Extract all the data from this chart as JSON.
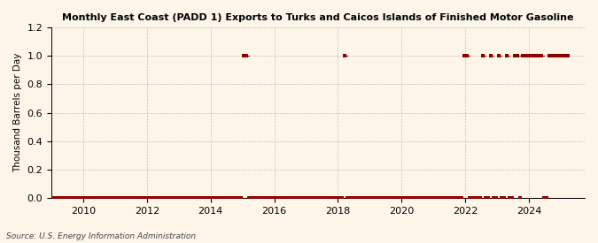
{
  "title": "Monthly East Coast (PADD 1) Exports to Turks and Caicos Islands of Finished Motor Gasoline",
  "ylabel": "Thousand Barrels per Day",
  "source": "Source: U.S. Energy Information Administration",
  "background_color": "#fdf6e8",
  "line_color": "#8b0000",
  "marker_color": "#8b0000",
  "ylim": [
    0.0,
    1.2
  ],
  "yticks": [
    0.0,
    0.2,
    0.4,
    0.6,
    0.8,
    1.0,
    1.2
  ],
  "xlim_start": 2009.0,
  "xlim_end": 2025.75,
  "xticks": [
    2010,
    2012,
    2014,
    2016,
    2018,
    2020,
    2022,
    2024
  ],
  "data": {
    "2009-01": 0,
    "2009-02": 0,
    "2009-03": 0,
    "2009-04": 0,
    "2009-05": 0,
    "2009-06": 0,
    "2009-07": 0,
    "2009-08": 0,
    "2009-09": 0,
    "2009-10": 0,
    "2009-11": 0,
    "2009-12": 0,
    "2010-01": 0,
    "2010-02": 0,
    "2010-03": 0,
    "2010-04": 0,
    "2010-05": 0,
    "2010-06": 0,
    "2010-07": 0,
    "2010-08": 0,
    "2010-09": 0,
    "2010-10": 0,
    "2010-11": 0,
    "2010-12": 0,
    "2011-01": 0,
    "2011-02": 0,
    "2011-03": 0,
    "2011-04": 0,
    "2011-05": 0,
    "2011-06": 0,
    "2011-07": 0,
    "2011-08": 0,
    "2011-09": 0,
    "2011-10": 0,
    "2011-11": 0,
    "2011-12": 0,
    "2012-01": 0,
    "2012-02": 0,
    "2012-03": 0,
    "2012-04": 0,
    "2012-05": 0,
    "2012-06": 0,
    "2012-07": 0,
    "2012-08": 0,
    "2012-09": 0,
    "2012-10": 0,
    "2012-11": 0,
    "2012-12": 0,
    "2013-01": 0,
    "2013-02": 0,
    "2013-03": 0,
    "2013-04": 0,
    "2013-05": 0,
    "2013-06": 0,
    "2013-07": 0,
    "2013-08": 0,
    "2013-09": 0,
    "2013-10": 0,
    "2013-11": 0,
    "2013-12": 0,
    "2014-01": 0,
    "2014-02": 0,
    "2014-03": 0,
    "2014-04": 0,
    "2014-05": 0,
    "2014-06": 0,
    "2014-07": 0,
    "2014-08": 0,
    "2014-09": 0,
    "2014-10": 0,
    "2014-11": 0,
    "2014-12": 0,
    "2015-01": 1,
    "2015-02": 1,
    "2015-03": 0,
    "2015-04": 0,
    "2015-05": 0,
    "2015-06": 0,
    "2015-07": 0,
    "2015-08": 0,
    "2015-09": 0,
    "2015-10": 0,
    "2015-11": 0,
    "2015-12": 0,
    "2016-01": 0,
    "2016-02": 0,
    "2016-03": 0,
    "2016-04": 0,
    "2016-05": 0,
    "2016-06": 0,
    "2016-07": 0,
    "2016-08": 0,
    "2016-09": 0,
    "2016-10": 0,
    "2016-11": 0,
    "2016-12": 0,
    "2017-01": 0,
    "2017-02": 0,
    "2017-03": 0,
    "2017-04": 0,
    "2017-05": 0,
    "2017-06": 0,
    "2017-07": 0,
    "2017-08": 0,
    "2017-09": 0,
    "2017-10": 0,
    "2017-11": 0,
    "2017-12": 0,
    "2018-01": 0,
    "2018-02": 0,
    "2018-03": 1,
    "2018-04": 0,
    "2018-05": 0,
    "2018-06": 0,
    "2018-07": 0,
    "2018-08": 0,
    "2018-09": 0,
    "2018-10": 0,
    "2018-11": 0,
    "2018-12": 0,
    "2019-01": 0,
    "2019-02": 0,
    "2019-03": 0,
    "2019-04": 0,
    "2019-05": 0,
    "2019-06": 0,
    "2019-07": 0,
    "2019-08": 0,
    "2019-09": 0,
    "2019-10": 0,
    "2019-11": 0,
    "2019-12": 0,
    "2020-01": 0,
    "2020-02": 0,
    "2020-03": 0,
    "2020-04": 0,
    "2020-05": 0,
    "2020-06": 0,
    "2020-07": 0,
    "2020-08": 0,
    "2020-09": 0,
    "2020-10": 0,
    "2020-11": 0,
    "2020-12": 0,
    "2021-01": 0,
    "2021-02": 0,
    "2021-03": 0,
    "2021-04": 0,
    "2021-05": 0,
    "2021-06": 0,
    "2021-07": 0,
    "2021-08": 0,
    "2021-09": 0,
    "2021-10": 0,
    "2021-11": 0,
    "2021-12": 1,
    "2022-01": 1,
    "2022-02": 0,
    "2022-03": 0,
    "2022-04": 0,
    "2022-05": 0,
    "2022-06": 0,
    "2022-07": 1,
    "2022-08": 0,
    "2022-09": 0,
    "2022-10": 1,
    "2022-11": 0,
    "2022-12": 0,
    "2023-01": 1,
    "2023-02": 0,
    "2023-03": 0,
    "2023-04": 1,
    "2023-05": 0,
    "2023-06": 0,
    "2023-07": 1,
    "2023-08": 1,
    "2023-09": 0,
    "2023-10": 1,
    "2023-11": 1,
    "2023-12": 1,
    "2024-01": 1,
    "2024-02": 1,
    "2024-03": 1,
    "2024-04": 1,
    "2024-05": 1,
    "2024-06": 0,
    "2024-07": 0,
    "2024-08": 1,
    "2024-09": 1,
    "2024-10": 1,
    "2024-11": 1,
    "2024-12": 1,
    "2025-01": 1,
    "2025-02": 1,
    "2025-03": 1
  }
}
